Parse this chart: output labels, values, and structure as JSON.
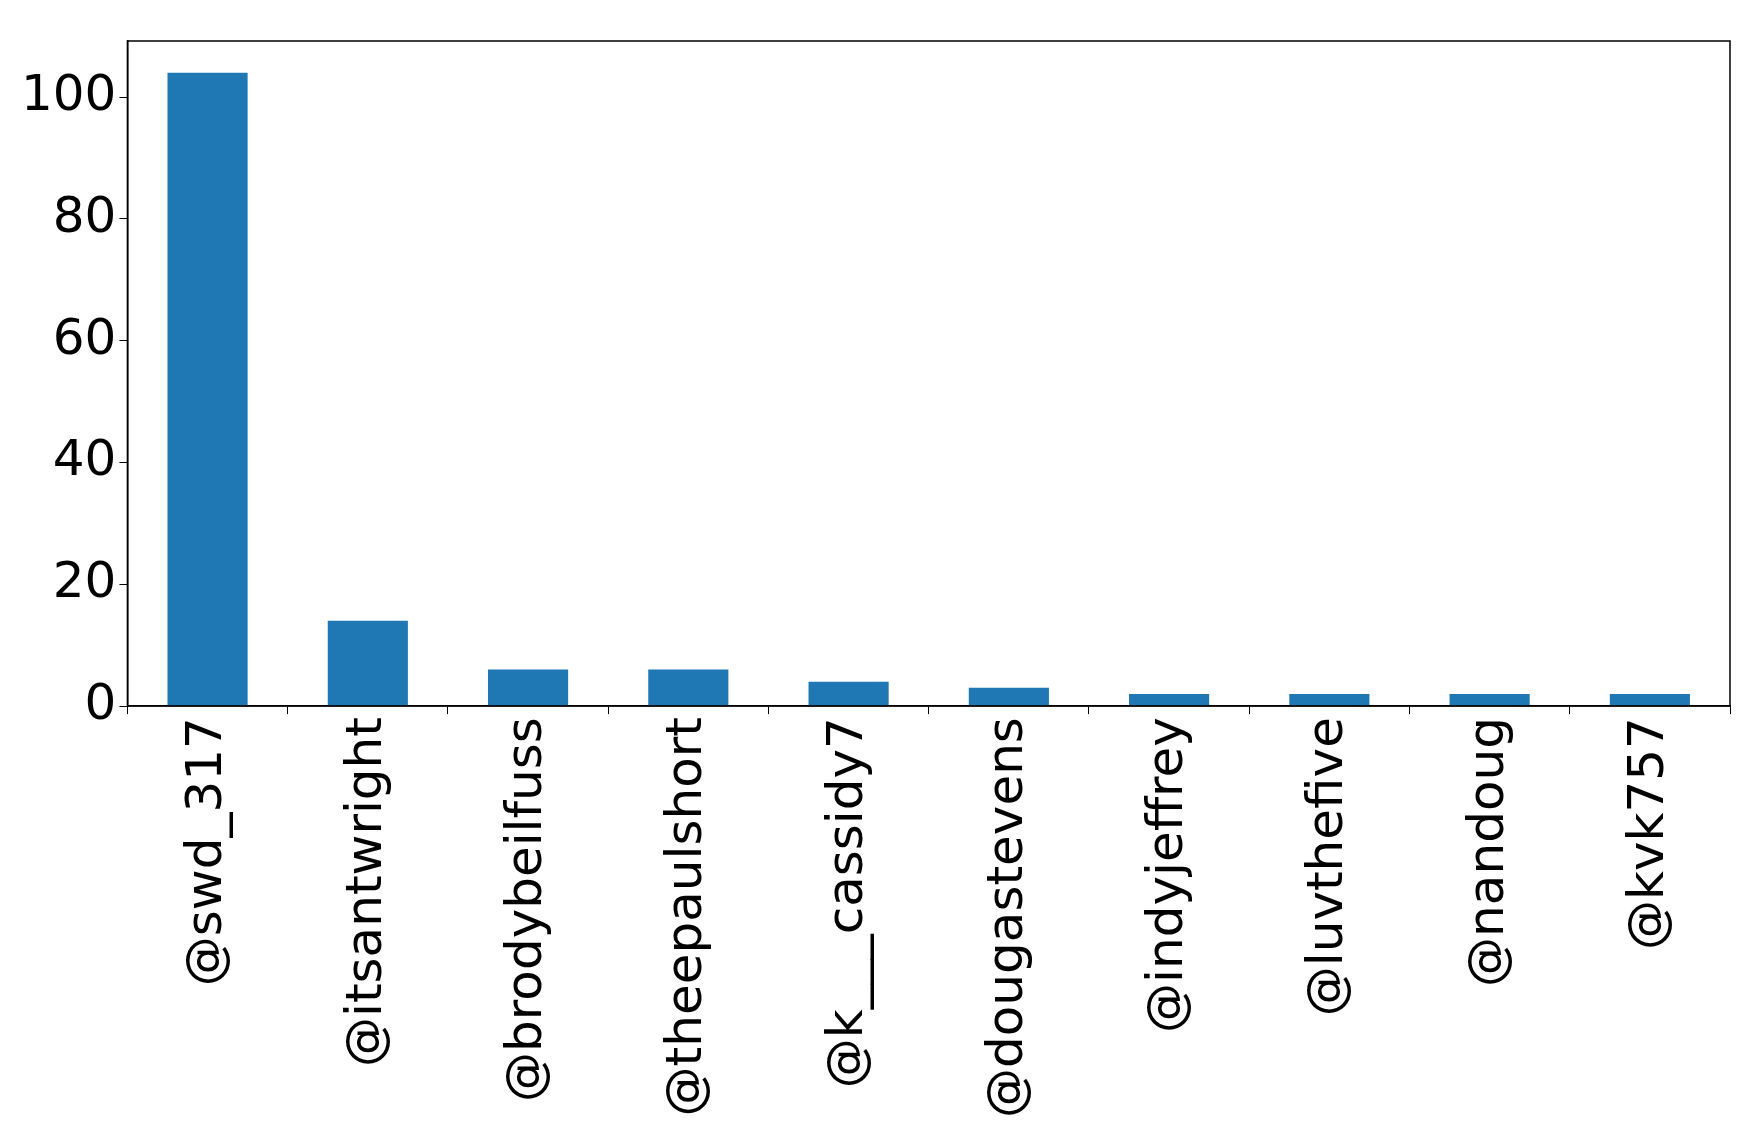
{
  "chart_data": {
    "type": "bar",
    "categories": [
      "@swd_317",
      "@itsantwright",
      "@brodybeilfuss",
      "@theepaulshort",
      "@k___cassidy7",
      "@dougastevens",
      "@indyjeffrey",
      "@luvthefive",
      "@nandoug",
      "@kvk757"
    ],
    "values": [
      104,
      14,
      6,
      6,
      4,
      3,
      2,
      2,
      2,
      2
    ],
    "color": "#1f77b4",
    "ylim": [
      0,
      109.2
    ],
    "yticks": [
      0,
      20,
      40,
      60,
      80,
      100
    ],
    "grid": false,
    "legend": false
  }
}
